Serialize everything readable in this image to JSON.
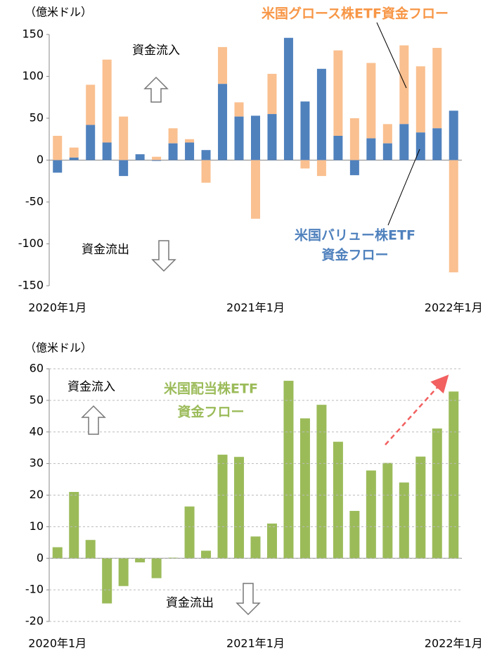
{
  "chart_data": [
    {
      "type": "bar",
      "stacked": true,
      "unit_label": "（億米ドル）",
      "categories": [
        "2020年1月",
        null,
        null,
        null,
        null,
        null,
        null,
        null,
        null,
        null,
        null,
        null,
        "2021年1月",
        null,
        null,
        null,
        null,
        null,
        null,
        null,
        null,
        null,
        null,
        null,
        "2022年1月"
      ],
      "series": [
        {
          "label": [
            "米国バリュー株ETF",
            "資金フロー"
          ],
          "color": "#4f81bd",
          "values": [
            -15,
            3,
            42,
            21,
            -19,
            7,
            -1,
            20,
            21,
            12,
            91,
            52,
            53,
            55,
            146,
            70,
            109,
            29,
            -18,
            26,
            20,
            43,
            33,
            38,
            59
          ]
        },
        {
          "label": [
            "米国グロース株ETF資金フロー"
          ],
          "color": "#fac090",
          "values": [
            29,
            12,
            48,
            99,
            52,
            0,
            4,
            18,
            4,
            -27,
            44,
            17,
            -70,
            48,
            0,
            -10,
            -19,
            102,
            50,
            90,
            23,
            94,
            79,
            96,
            -134
          ]
        }
      ],
      "ylim": [
        -150,
        150
      ],
      "yticks": [
        -150,
        -100,
        -50,
        0,
        50,
        100,
        150
      ],
      "grid": false,
      "annotations": [
        "資金流入",
        "資金流出"
      ]
    },
    {
      "type": "bar",
      "stacked": false,
      "unit_label": "（億米ドル）",
      "categories": [
        "2020年1月",
        null,
        null,
        null,
        null,
        null,
        null,
        null,
        null,
        null,
        null,
        null,
        "2021年1月",
        null,
        null,
        null,
        null,
        null,
        null,
        null,
        null,
        null,
        null,
        null,
        "2022年1月"
      ],
      "series": [
        {
          "label": [
            "米国配当株ETF",
            "資金フロー"
          ],
          "color": "#9bbb59",
          "values": [
            3.5,
            21,
            5.8,
            -14.3,
            -8.8,
            -1.3,
            -6.3,
            0.2,
            16.4,
            2.4,
            32.8,
            32.1,
            6.9,
            11,
            56.2,
            44.3,
            48.6,
            36.9,
            15,
            27.8,
            30.2,
            24,
            32.2,
            41.1,
            52.8
          ]
        }
      ],
      "ylim": [
        -20,
        60
      ],
      "yticks": [
        -20,
        -10,
        0,
        10,
        20,
        30,
        40,
        50,
        60
      ],
      "grid": true,
      "annotations": [
        "資金流入",
        "資金流出"
      ]
    }
  ]
}
